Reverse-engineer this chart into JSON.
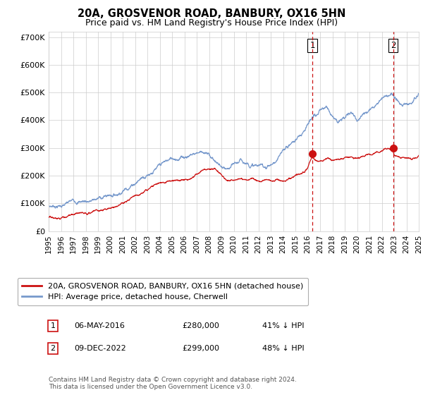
{
  "title": "20A, GROSVENOR ROAD, BANBURY, OX16 5HN",
  "subtitle": "Price paid vs. HM Land Registry's House Price Index (HPI)",
  "hpi_color": "#7799cc",
  "price_color": "#cc1111",
  "dashed_line_color": "#cc1111",
  "legend_label_price": "20A, GROSVENOR ROAD, BANBURY, OX16 5HN (detached house)",
  "legend_label_hpi": "HPI: Average price, detached house, Cherwell",
  "annotation1_label": "1",
  "annotation1_date": "06-MAY-2016",
  "annotation1_price": "£280,000",
  "annotation1_pct": "41% ↓ HPI",
  "annotation2_label": "2",
  "annotation2_date": "09-DEC-2022",
  "annotation2_price": "£299,000",
  "annotation2_pct": "48% ↓ HPI",
  "footer": "Contains HM Land Registry data © Crown copyright and database right 2024.\nThis data is licensed under the Open Government Licence v3.0.",
  "ylim": [
    0,
    720000
  ],
  "yticks": [
    0,
    100000,
    200000,
    300000,
    400000,
    500000,
    600000,
    700000
  ],
  "ytick_labels": [
    "£0",
    "£100K",
    "£200K",
    "£300K",
    "£400K",
    "£500K",
    "£600K",
    "£700K"
  ],
  "sale1_year": 2016.37,
  "sale1_price": 280000,
  "sale2_year": 2022.92,
  "sale2_price": 299000,
  "xmin": 1995,
  "xmax": 2025
}
